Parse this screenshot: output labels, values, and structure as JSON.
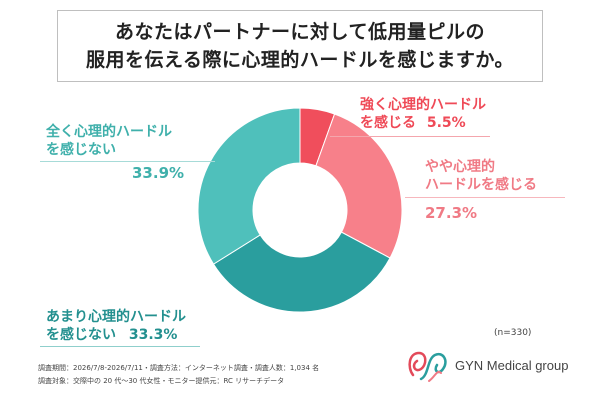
{
  "title": {
    "line1": "あなたはパートナーに対して低用量ピルの",
    "line2": "服用を伝える際に心理的ハードルを感じますか。"
  },
  "chart_data": {
    "type": "pie",
    "donut": true,
    "slices": [
      {
        "label_line1": "強く心理的ハードル",
        "label_line2": "を感じる",
        "value": 5.5,
        "value_label": "5.5%",
        "color": "#f04e5c"
      },
      {
        "label_line1": "やや心理的",
        "label_line2": "ハードルを感じる",
        "value": 27.3,
        "value_label": "27.3%",
        "color": "#f7808a"
      },
      {
        "label_line1": "あまり心理的ハードル",
        "label_line2": "を感じない",
        "value": 33.3,
        "value_label": "33.3%",
        "color": "#2a9e9e"
      },
      {
        "label_line1": "全く心理的ハードル",
        "label_line2": "を感じない",
        "value": 33.9,
        "value_label": "33.9%",
        "color": "#4fc0bb"
      }
    ]
  },
  "n_label": "(n=330)",
  "footer": {
    "line1": "調査期間：2026/7/8-2026/7/11・調査方法：インターネット調査・調査人数：1,034 名",
    "line2": "調査対象：交際中の 20 代～30 代女性・モニター提供元：RC リサーチデータ"
  },
  "logo": {
    "text": "GYN Medical group"
  },
  "colors": {
    "teal_text": "#3fb0ab",
    "red_text": "#ef4a57",
    "pink_text": "#f07a85",
    "dark_teal_text": "#23908f"
  }
}
